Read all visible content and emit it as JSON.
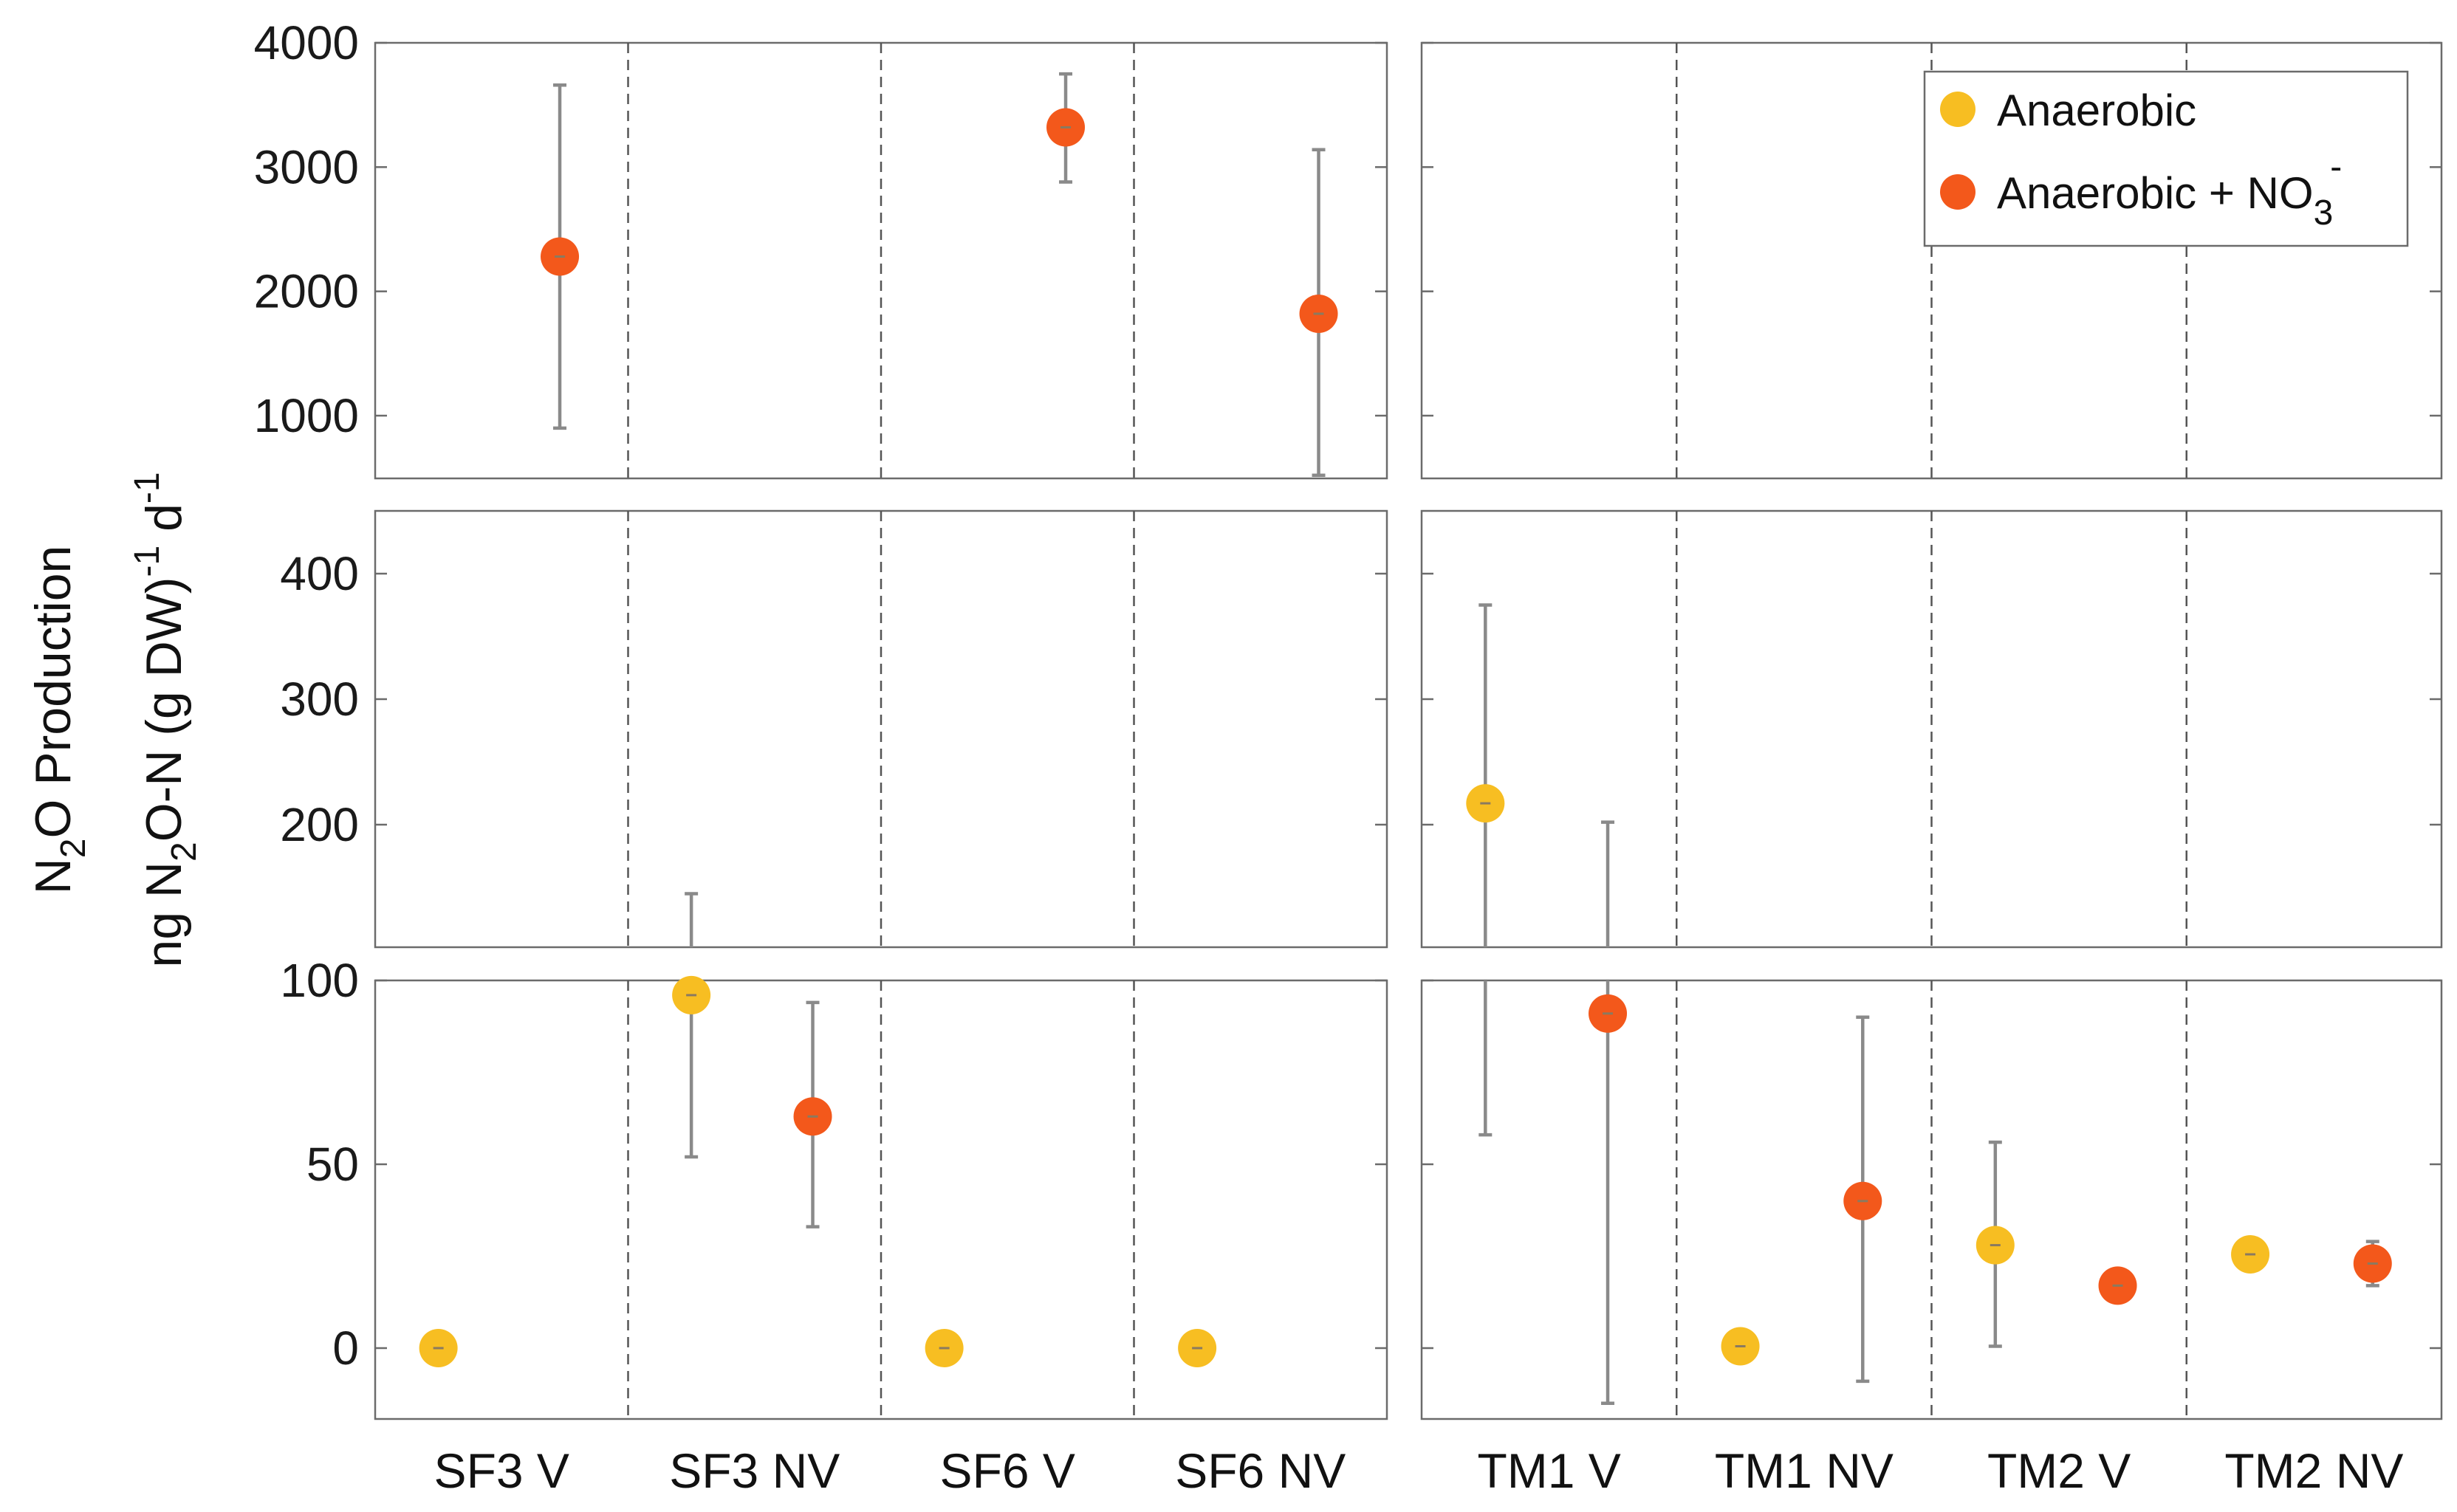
{
  "chart_data": {
    "type": "scatter",
    "ylabel_line1": "N2O Production",
    "ylabel_line2": "ng N2O-N (g DW)-1 d-1",
    "ylabel_parts": {
      "n": "N",
      "two": "2",
      "o_production": "O Production",
      "ng_n": "ng N",
      "o_n_gdw": "O-N (g DW)",
      "minus1": "-1",
      "d": " d",
      "minus1b": "-1"
    },
    "rows": [
      {
        "name": "top",
        "ylim": [
          450,
          4000
        ],
        "ticks": [
          1000,
          2000,
          3000,
          4000
        ],
        "tick_labels": [
          "1000",
          "2000",
          "3000",
          "4000"
        ]
      },
      {
        "name": "middle",
        "ylim": [
          100,
          450
        ],
        "ticks": [
          200,
          300,
          400
        ],
        "tick_labels": [
          "200",
          "300",
          "400"
        ]
      },
      {
        "name": "bottom",
        "ylim": [
          -20,
          100
        ],
        "ticks": [
          0,
          50,
          100
        ],
        "tick_labels": [
          "0",
          "50",
          "100"
        ]
      }
    ],
    "panels": [
      {
        "name": "SF",
        "categories": [
          "SF3 V",
          "SF3 NV",
          "SF6 V",
          "SF6 NV"
        ],
        "series": [
          {
            "name": "Anaerobic",
            "values": [
              0,
              96,
              0,
              0
            ],
            "err_low": [
              0,
              52,
              0,
              0
            ],
            "err_high": [
              0,
              145,
              0,
              0
            ]
          },
          {
            "name": "Anaerobic + NO3-",
            "values": [
              2280,
              63,
              3320,
              1820
            ],
            "err_low": [
              900,
              33,
              2880,
              520
            ],
            "err_high": [
              3660,
              94,
              3750,
              3140
            ]
          }
        ]
      },
      {
        "name": "TM",
        "categories": [
          "TM1 V",
          "TM1 NV",
          "TM2 V",
          "TM2 NV"
        ],
        "series": [
          {
            "name": "Anaerobic",
            "values": [
              217,
              0.5,
              28,
              25.5
            ],
            "err_low": [
              58,
              0.5,
              0.5,
              24.5
            ],
            "err_high": [
              375,
              0.5,
              56,
              26.5
            ]
          },
          {
            "name": "Anaerobic + NO3-",
            "values": [
              91,
              40,
              17,
              23
            ],
            "err_low": [
              -15,
              -9,
              16,
              17
            ],
            "err_high": [
              202,
              90,
              18,
              29
            ]
          }
        ]
      }
    ],
    "legend": {
      "location": "top-right of right panel",
      "entries": [
        {
          "name": "Anaerobic",
          "color": "#F7BE22"
        },
        {
          "name": "Anaerobic + NO3-",
          "color": "#F3581B"
        }
      ]
    },
    "legend_parts": {
      "anaerobic": "Anaerobic",
      "plus_no": "Anaerobic + NO",
      "sub3": "3",
      "sup_minus": "-"
    },
    "colors": {
      "anaerobic": "#F7BE22",
      "nitrate": "#F3581B"
    }
  }
}
